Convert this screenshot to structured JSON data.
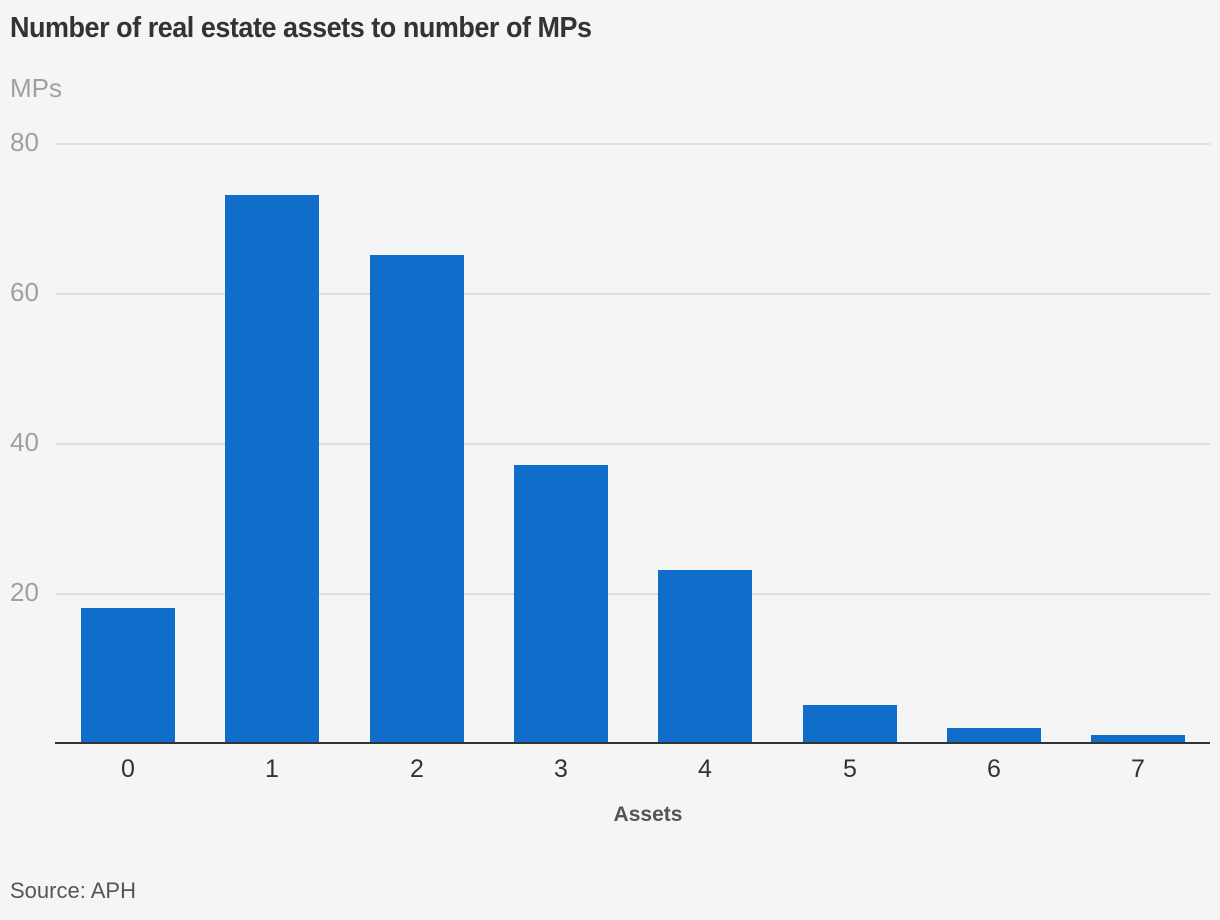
{
  "chart_data": {
    "type": "bar",
    "title": "Number of real estate assets to number of MPs",
    "ylabel": "MPs",
    "xlabel": "Assets",
    "categories": [
      "0",
      "1",
      "2",
      "3",
      "4",
      "5",
      "6",
      "7"
    ],
    "values": [
      18,
      73,
      65,
      37,
      23,
      5,
      2,
      1
    ],
    "yticks": [
      "20",
      "40",
      "60",
      "80"
    ],
    "ylim": [
      0,
      80
    ],
    "grid": true,
    "legend": null,
    "bar_color": "#106dc9",
    "source": "Source: APH"
  }
}
